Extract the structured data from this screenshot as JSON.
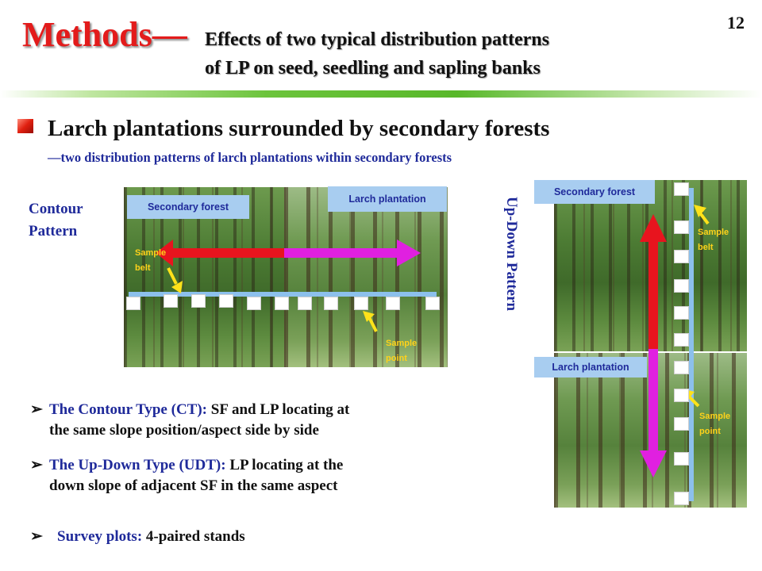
{
  "page_number": "12",
  "title": {
    "main": "Methods—",
    "sub_line1": "Effects of two typical distribution patterns",
    "sub_line2": "of LP on seed, seedling and sapling banks"
  },
  "heading": "Larch plantations surrounded by secondary forests",
  "subheading": "—two distribution patterns of larch plantations within secondary forests",
  "contour": {
    "label_line1": "Contour",
    "label_line2": "Pattern",
    "secondary_forest_tag": "Secondary forest",
    "larch_plantation_tag": "Larch plantation",
    "sample_belt_line1": "Sample",
    "sample_belt_line2": "belt",
    "sample_point_line1": "Sample",
    "sample_point_line2": "point"
  },
  "updown": {
    "label": "Up-Down Pattern",
    "secondary_forest_tag": "Secondary forest",
    "larch_plantation_tag": "Larch plantation",
    "sample_belt_line1": "Sample",
    "sample_belt_line2": "belt",
    "sample_point_line1": "Sample",
    "sample_point_line2": "point"
  },
  "bullets": [
    {
      "marker": "➢",
      "term": "The Contour Type (CT):",
      "text1": " SF and LP locating at",
      "text2": "the same slope position/aspect side by side"
    },
    {
      "marker": "➢",
      "term": "The Up-Down Type (UDT):",
      "text1": " LP locating at the",
      "text2": "down slope of adjacent SF in the same aspect"
    },
    {
      "marker": "➢",
      "term": "Survey plots:",
      "text1": " 4-paired stands"
    }
  ],
  "colors": {
    "title_red": "#e31b1b",
    "label_blue": "#1f2a9a",
    "arrow_red": "#e8141e",
    "arrow_magenta": "#e020e0",
    "belt_blue": "#8cc0ec",
    "pointer_yellow": "#ffe21a"
  }
}
